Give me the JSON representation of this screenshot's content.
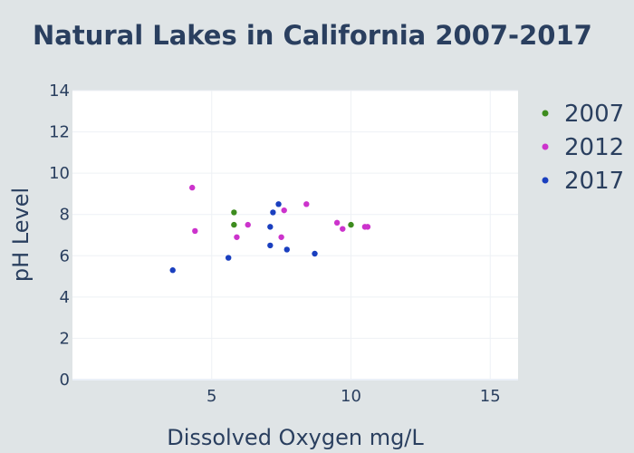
{
  "chart_data": {
    "type": "scatter",
    "title": "Natural Lakes in California 2007-2017",
    "xlabel": "Dissolved Oxygen mg/L",
    "ylabel": "pH Level",
    "xlim": [
      0,
      16
    ],
    "ylim": [
      0,
      14
    ],
    "x_ticks": [
      5,
      10,
      15
    ],
    "y_ticks": [
      0,
      2,
      4,
      6,
      8,
      10,
      12,
      14
    ],
    "grid": true,
    "legend_position": "right",
    "series": [
      {
        "name": "2007",
        "color": "#3d8c1e",
        "points": [
          {
            "x": 5.8,
            "y": 8.1
          },
          {
            "x": 5.8,
            "y": 7.5
          },
          {
            "x": 10.0,
            "y": 7.5
          }
        ]
      },
      {
        "name": "2012",
        "color": "#cc33cc",
        "points": [
          {
            "x": 4.3,
            "y": 9.3
          },
          {
            "x": 4.4,
            "y": 7.2
          },
          {
            "x": 5.9,
            "y": 6.9
          },
          {
            "x": 6.3,
            "y": 7.5
          },
          {
            "x": 7.5,
            "y": 6.9
          },
          {
            "x": 7.6,
            "y": 8.2
          },
          {
            "x": 8.4,
            "y": 8.5
          },
          {
            "x": 9.5,
            "y": 7.6
          },
          {
            "x": 9.7,
            "y": 7.3
          },
          {
            "x": 10.5,
            "y": 7.4
          },
          {
            "x": 10.6,
            "y": 7.4
          }
        ]
      },
      {
        "name": "2017",
        "color": "#1a3fbf",
        "points": [
          {
            "x": 3.6,
            "y": 5.3
          },
          {
            "x": 5.6,
            "y": 5.9
          },
          {
            "x": 7.1,
            "y": 6.5
          },
          {
            "x": 7.1,
            "y": 7.4
          },
          {
            "x": 7.2,
            "y": 8.1
          },
          {
            "x": 7.4,
            "y": 8.5
          },
          {
            "x": 7.7,
            "y": 6.3
          },
          {
            "x": 8.7,
            "y": 6.1
          }
        ]
      }
    ]
  }
}
